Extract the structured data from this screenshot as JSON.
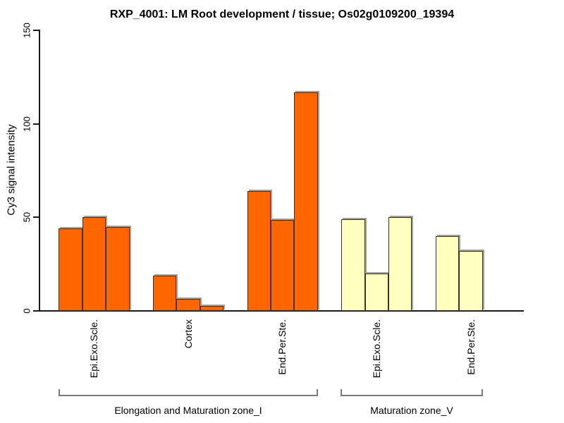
{
  "title": "RXP_4001: LM Root development / tissue; Os02g0109200_19394",
  "chart_data": {
    "type": "bar",
    "title": "RXP_4001: LM Root development / tissue; Os02g0109200_19394",
    "xlabel": "",
    "ylabel": "Cy3 signal intensity",
    "ylim": [
      0,
      150
    ],
    "yticks": [
      "0",
      "50",
      "100",
      "150"
    ],
    "grid": false,
    "legend": false,
    "colors": {
      "orange_fill": "#FF6600",
      "pale_yellow_fill": "#FFFFC0",
      "bar_border": "#3A3222",
      "bar_shadow": "#A0A0A0",
      "axis": "#1A1A1A",
      "bracket": "#7A7A7A"
    },
    "groups": [
      {
        "label": "Epi.Exo.Scle.",
        "section": "Elongation and Maturation zone_I",
        "color": "#FF6600",
        "values": [
          44,
          50,
          45
        ]
      },
      {
        "label": "Cortex",
        "section": "Elongation and Maturation zone_I",
        "color": "#FF6600",
        "values": [
          19,
          6.5,
          2.5
        ]
      },
      {
        "label": "End.Per.Ste.",
        "section": "Elongation and Maturation zone_I",
        "color": "#FF6600",
        "values": [
          64,
          48.5,
          117
        ]
      },
      {
        "label": "Epi.Exo.Scle.",
        "section": "Maturation zone_V",
        "color": "#FFFFC0",
        "values": [
          49,
          20,
          50
        ]
      },
      {
        "label": "End.Per.Ste.",
        "section": "Maturation zone_V",
        "color": "#FFFFC0",
        "values": [
          40,
          32
        ]
      }
    ],
    "sections": [
      {
        "label": "Elongation and Maturation zone_I",
        "group_span": [
          0,
          2
        ]
      },
      {
        "label": "Maturation zone_V",
        "group_span": [
          3,
          4
        ]
      }
    ]
  }
}
